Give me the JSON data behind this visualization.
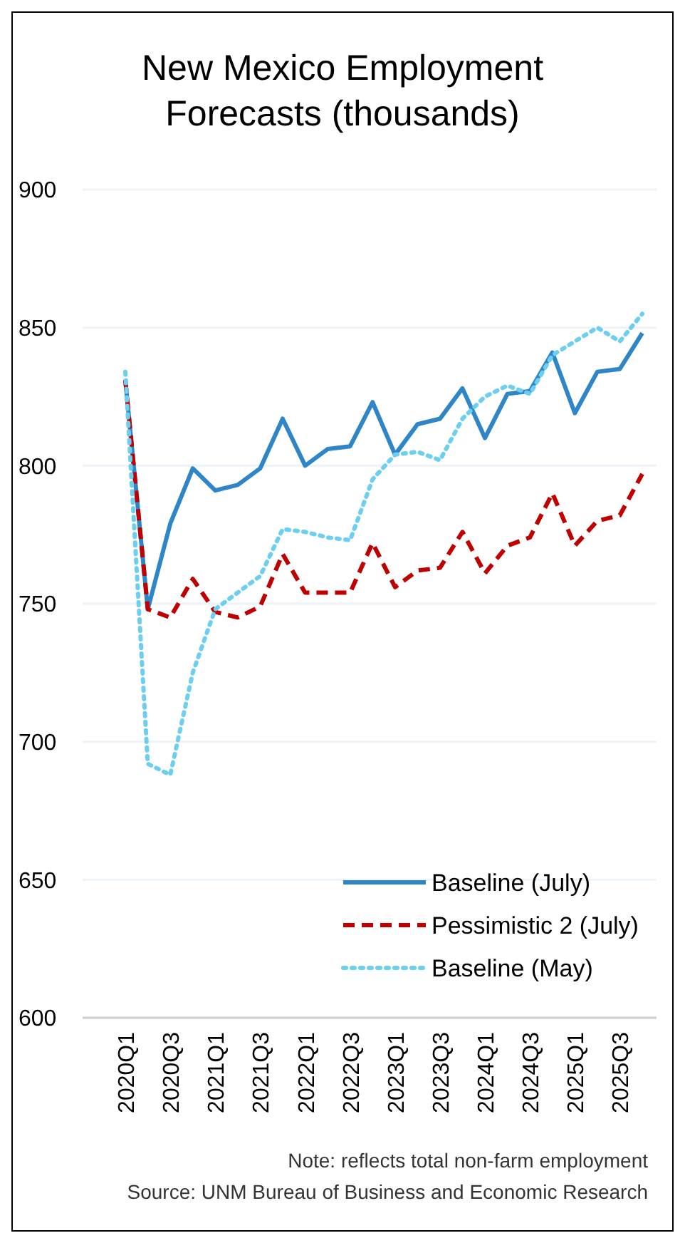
{
  "chart_data": {
    "type": "line",
    "title": "New Mexico Employment Forecasts (thousands)",
    "categories": [
      "2020Q1",
      null,
      "2020Q3",
      null,
      "2021Q1",
      null,
      "2021Q3",
      null,
      "2022Q1",
      null,
      "2022Q3",
      null,
      "2023Q1",
      null,
      "2023Q3",
      null,
      "2024Q1",
      null,
      "2024Q3",
      null,
      "2025Q1",
      null,
      "2025Q3",
      null
    ],
    "series": [
      {
        "name": "Baseline (July)",
        "color": "#2e86c8",
        "line_style": "solid",
        "values": [
          831,
          748,
          779,
          799,
          791,
          793,
          799,
          817,
          800,
          806,
          807,
          823,
          804,
          815,
          817,
          828,
          810,
          826,
          827,
          841,
          819,
          834,
          835,
          848
        ]
      },
      {
        "name": "Pessimistic 2 (July)",
        "color": "#c00000",
        "line_style": "dashed",
        "values": [
          831,
          748,
          745,
          759,
          747,
          745,
          749,
          768,
          754,
          754,
          754,
          772,
          756,
          762,
          763,
          776,
          761,
          771,
          774,
          790,
          771,
          780,
          782,
          797
        ]
      },
      {
        "name": "Baseline (May)",
        "color": "#6ccff0",
        "line_style": "dotted",
        "values": [
          834,
          692,
          688,
          725,
          748,
          754,
          760,
          777,
          776,
          774,
          773,
          795,
          804,
          805,
          802,
          817,
          825,
          829,
          826,
          840,
          845,
          850,
          845,
          855
        ]
      }
    ],
    "ylim": [
      600,
      900
    ],
    "yticks": [
      600,
      650,
      700,
      750,
      800,
      850,
      900
    ],
    "grid": "y",
    "legend": "bottom right",
    "annotations": [
      "Note: reflects total non-farm employment",
      "Source: UNM Bureau of Business and Economic Research"
    ]
  }
}
